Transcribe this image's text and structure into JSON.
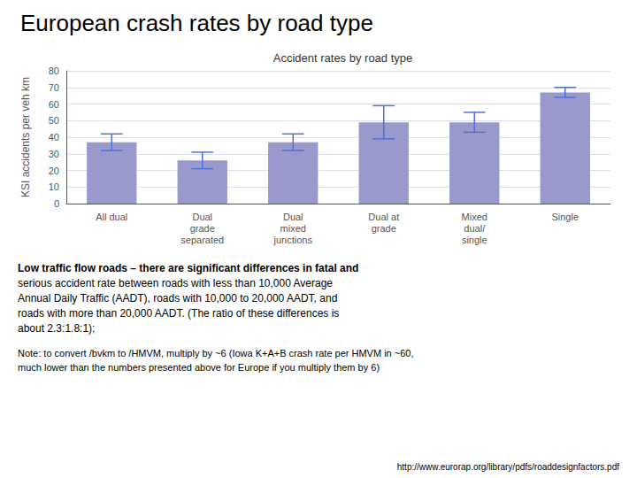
{
  "chart_data": {
    "type": "bar",
    "title": "European crash rates by road type",
    "subtitle": "Accident rates by road type",
    "ylabel": "KSI accidents per veh km",
    "categories": [
      "All dual",
      "Dual\ngrade\nseparated",
      "Dual\nmixed\njunctions",
      "Dual at\ngrade",
      "Mixed\ndual/\nsingle",
      "Single"
    ],
    "values": [
      37,
      26,
      37,
      49,
      49,
      67
    ],
    "error_lower": [
      5,
      5,
      5,
      10,
      6,
      3
    ],
    "error_upper": [
      5,
      5,
      5,
      10,
      6,
      3
    ],
    "color": "#9999CC",
    "ylim": [
      0,
      80
    ],
    "yticks": [
      0,
      10,
      20,
      30,
      40,
      50,
      60,
      70,
      80
    ],
    "grid": true,
    "annotations": [
      "Low traffic flow roads – there are significant differences in fatal and",
      "serious accident rate between roads with less than 10,000 Average\nAnnual Daily Traffic (AADT), roads with 10,000 to 20,000 AADT, and\nroads with more than 20,000 AADT. (The ratio of these differences is\nabout 2.3:1.8:1);",
      "Note: to convert /bvkm to /HMVM, multiply by ~6 (Iowa K+A+B crash rate per HMVM in ~60,\nmuch lower than the numbers presented above for Europe if you multiply them by 6)",
      "http://www.eurorap.org/library/pdfs/roaddesignfactors.pdf"
    ]
  }
}
